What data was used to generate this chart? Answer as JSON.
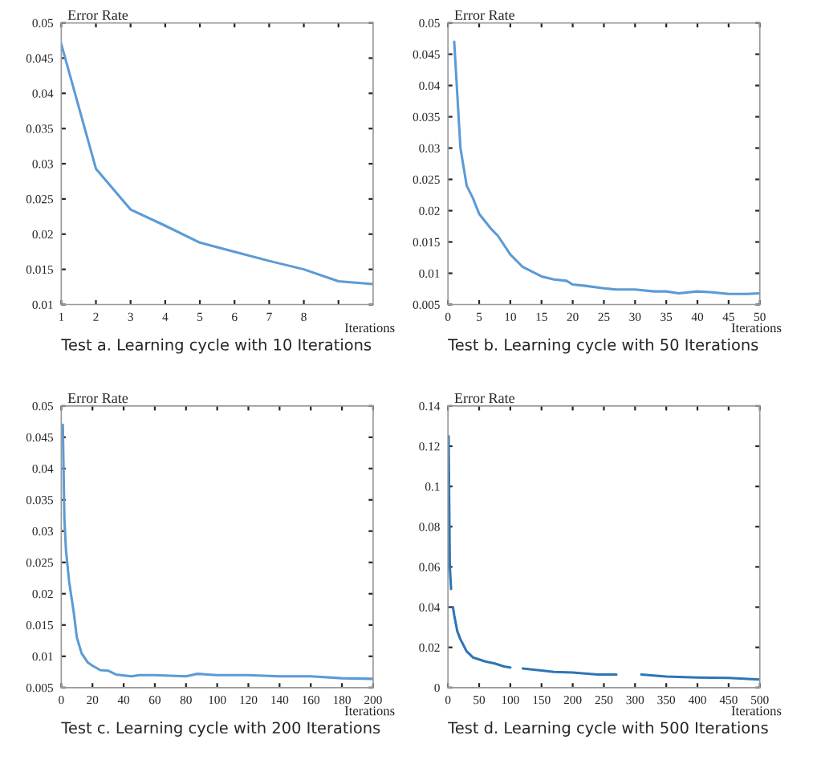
{
  "chart_data": [
    {
      "type": "line",
      "title": "Test a. Learning cycle with 10 Iterations",
      "xlabel": "Iterations",
      "ylabel": "Error Rate",
      "grid": false,
      "legend": false,
      "series": [
        {
          "color": "#5b9bd5",
          "x": [
            1,
            2,
            3,
            4,
            5,
            6,
            7,
            8,
            9,
            10
          ],
          "values": [
            0.047,
            0.0293,
            0.0235,
            0.0212,
            0.0188,
            0.0175,
            0.0162,
            0.015,
            0.0133,
            0.0129
          ]
        }
      ],
      "xlim": [
        1,
        10
      ],
      "xticks": [
        1,
        2,
        3,
        4,
        5,
        6,
        7,
        8,
        {
          "value": 9,
          "label": null
        }
      ],
      "ylim": [
        0.01,
        0.05
      ],
      "yticks": [
        0.01,
        0.015,
        0.02,
        0.025,
        0.03,
        0.035,
        0.04,
        0.045,
        0.05
      ]
    },
    {
      "type": "line",
      "title": "Test b. Learning cycle with 50 Iterations",
      "xlabel": "Iterations",
      "ylabel": "Error Rate",
      "grid": false,
      "legend": false,
      "series": [
        {
          "color": "#5b9bd5",
          "x": [
            1,
            2,
            3,
            4,
            5,
            7,
            8,
            10,
            12,
            15,
            17,
            19,
            20,
            22,
            25,
            27,
            30,
            33,
            35,
            37,
            40,
            42,
            45,
            48,
            50
          ],
          "values": [
            0.047,
            0.03,
            0.024,
            0.022,
            0.0195,
            0.017,
            0.016,
            0.013,
            0.011,
            0.0095,
            0.009,
            0.0088,
            0.0082,
            0.008,
            0.0076,
            0.0074,
            0.0074,
            0.0071,
            0.0071,
            0.0068,
            0.0071,
            0.007,
            0.0067,
            0.0067,
            0.0068
          ]
        }
      ],
      "xlim": [
        0,
        50
      ],
      "xticks": [
        0,
        5,
        10,
        15,
        20,
        25,
        30,
        35,
        40,
        45,
        50
      ],
      "ylim": [
        0.005,
        0.05
      ],
      "yticks": [
        0.005,
        0.01,
        0.015,
        0.02,
        0.025,
        0.03,
        0.035,
        0.04,
        0.045,
        0.05
      ]
    },
    {
      "type": "line",
      "title": "Test c. Learning cycle with 200 Iterations",
      "xlabel": "Iterations",
      "ylabel": "Error Rate",
      "grid": false,
      "legend": false,
      "series": [
        {
          "color": "#5b9bd5",
          "x": [
            1,
            2,
            3,
            5,
            8,
            10,
            13,
            17,
            20,
            25,
            30,
            35,
            45,
            50,
            60,
            80,
            87,
            100,
            120,
            140,
            160,
            180,
            200
          ],
          "values": [
            0.047,
            0.032,
            0.027,
            0.022,
            0.017,
            0.013,
            0.0105,
            0.009,
            0.0085,
            0.0078,
            0.0077,
            0.0071,
            0.0068,
            0.007,
            0.007,
            0.0068,
            0.0072,
            0.007,
            0.007,
            0.0068,
            0.0068,
            0.0065,
            0.0064
          ]
        }
      ],
      "xlim": [
        0,
        200
      ],
      "xticks": [
        0,
        20,
        40,
        60,
        80,
        100,
        120,
        140,
        160,
        180,
        200
      ],
      "ylim": [
        0.005,
        0.05
      ],
      "yticks": [
        0.005,
        0.01,
        0.015,
        0.02,
        0.025,
        0.03,
        0.035,
        0.04,
        0.045,
        0.05
      ]
    },
    {
      "type": "line",
      "title": "Test d. Learning cycle with 500 Iterations",
      "xlabel": "Iterations",
      "ylabel": "Error Rate",
      "grid": false,
      "legend": false,
      "series": [
        {
          "color": "#2e75b6",
          "x": [
            1,
            3,
            5,
            6,
            8,
            10,
            15,
            20,
            30,
            40,
            50,
            60,
            75,
            90,
            100,
            110,
            120,
            150,
            170,
            200,
            220,
            240,
            270,
            280,
            310,
            350,
            400,
            450,
            500
          ],
          "values": [
            0.125,
            0.06,
            0.049,
            null,
            0.04,
            0.036,
            0.028,
            0.024,
            0.018,
            0.015,
            0.014,
            0.013,
            0.012,
            0.0105,
            0.01,
            null,
            0.0095,
            0.0085,
            0.0078,
            0.0075,
            0.007,
            0.0065,
            0.0065,
            null,
            0.0065,
            0.0055,
            0.005,
            0.0048,
            0.004
          ]
        }
      ],
      "xlim": [
        0,
        500
      ],
      "xticks": [
        0,
        50,
        100,
        150,
        200,
        250,
        300,
        350,
        400,
        450,
        500
      ],
      "ylim": [
        0,
        0.14
      ],
      "yticks": [
        0,
        0.02,
        0.04,
        0.06,
        0.08,
        0.1,
        0.12,
        0.14
      ]
    }
  ]
}
